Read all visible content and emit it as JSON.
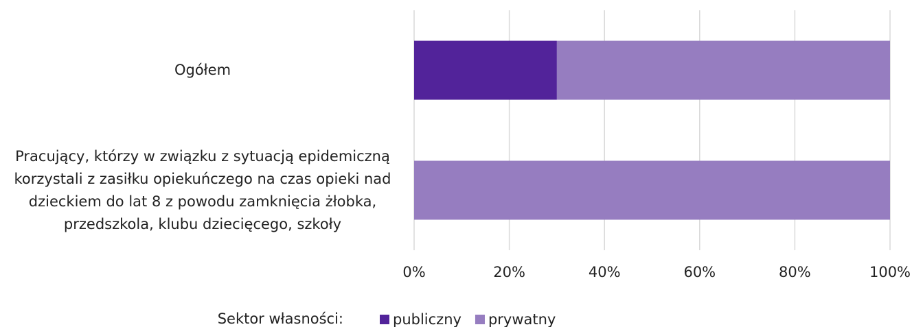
{
  "chart_data": {
    "type": "stacked_bar_horizontal",
    "categories": [
      "Ogółem",
      "Pracujący, którzy w związku z sytuacją epidemiczną korzystali z zasiłku opiekuńczego na czas opieki nad dzieckiem do lat 8 z powodu zamknięcia żłobka, przedszkola, klubu dziecięcego, szkoły"
    ],
    "series": [
      {
        "name": "publiczny",
        "color": "#52239a",
        "values": [
          30,
          0
        ]
      },
      {
        "name": "prywatny",
        "color": "#967dc0",
        "values": [
          70,
          100
        ]
      }
    ],
    "xlim": [
      0,
      100
    ],
    "xticks": [
      {
        "value": 0,
        "label": "0%"
      },
      {
        "value": 20,
        "label": "20%"
      },
      {
        "value": 40,
        "label": "40%"
      },
      {
        "value": 60,
        "label": "60%"
      },
      {
        "value": 80,
        "label": "80%"
      },
      {
        "value": 100,
        "label": "100%"
      }
    ],
    "grid": true,
    "legend_title": "Sektor własności:",
    "legend": "bottom"
  }
}
